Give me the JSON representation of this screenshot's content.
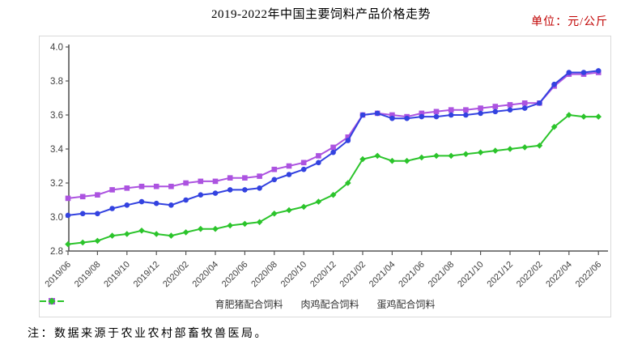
{
  "title": "2019-2022年中国主要饲料产品价格走势",
  "unit_label": "单位：元/公斤",
  "note": "注：数据来源于农业农村部畜牧兽医局。",
  "colors": {
    "pig_feed": "#3342E0",
    "broiler_feed": "#AC53E0",
    "layer_feed": "#2BC42B",
    "unit_text": "#C00000",
    "axis": "#555555",
    "tick_text": "#404040",
    "box_border": "#D9D9D9"
  },
  "chart_data": {
    "type": "line",
    "title": "2019-2022年中国主要饲料产品价格走势",
    "xlabel": "",
    "ylabel": "元/公斤",
    "grid": false,
    "legend_position": "bottom",
    "ylim": [
      2.8,
      4.0
    ],
    "y_ticks": [
      "2.8",
      "3.0",
      "3.2",
      "3.4",
      "3.6",
      "3.8",
      "4.0"
    ],
    "x": [
      "2019/06",
      "2019/07",
      "2019/08",
      "2019/09",
      "2019/10",
      "2019/11",
      "2019/12",
      "2020/01",
      "2020/02",
      "2020/03",
      "2020/04",
      "2020/05",
      "2020/06",
      "2020/07",
      "2020/08",
      "2020/09",
      "2020/10",
      "2020/11",
      "2020/12",
      "2021/01",
      "2021/02",
      "2021/03",
      "2021/04",
      "2021/05",
      "2021/06",
      "2021/07",
      "2021/08",
      "2021/09",
      "2021/10",
      "2021/11",
      "2021/12",
      "2022/01",
      "2022/02",
      "2022/03",
      "2022/04",
      "2022/05",
      "2022/06"
    ],
    "x_tick_every": 2,
    "series": [
      {
        "name": "育肥猪配合饲料",
        "marker": "circle",
        "color": "#3342E0",
        "values": [
          3.01,
          3.02,
          3.02,
          3.05,
          3.07,
          3.09,
          3.08,
          3.07,
          3.1,
          3.13,
          3.14,
          3.16,
          3.16,
          3.17,
          3.22,
          3.25,
          3.28,
          3.32,
          3.38,
          3.45,
          3.6,
          3.61,
          3.58,
          3.58,
          3.59,
          3.59,
          3.6,
          3.6,
          3.61,
          3.62,
          3.63,
          3.64,
          3.67,
          3.78,
          3.85,
          3.85,
          3.86
        ]
      },
      {
        "name": "肉鸡配合饲料",
        "marker": "square",
        "color": "#AC53E0",
        "values": [
          3.11,
          3.12,
          3.13,
          3.16,
          3.17,
          3.18,
          3.18,
          3.18,
          3.2,
          3.21,
          3.21,
          3.23,
          3.23,
          3.24,
          3.28,
          3.3,
          3.32,
          3.36,
          3.41,
          3.47,
          3.6,
          3.61,
          3.6,
          3.59,
          3.61,
          3.62,
          3.63,
          3.63,
          3.64,
          3.65,
          3.66,
          3.67,
          3.67,
          3.77,
          3.84,
          3.84,
          3.85
        ]
      },
      {
        "name": "蛋鸡配合饲料",
        "marker": "diamond",
        "color": "#2BC42B",
        "values": [
          2.84,
          2.85,
          2.86,
          2.89,
          2.9,
          2.92,
          2.9,
          2.89,
          2.91,
          2.93,
          2.93,
          2.95,
          2.96,
          2.97,
          3.02,
          3.04,
          3.06,
          3.09,
          3.13,
          3.2,
          3.34,
          3.36,
          3.33,
          3.33,
          3.35,
          3.36,
          3.36,
          3.37,
          3.38,
          3.39,
          3.4,
          3.41,
          3.42,
          3.53,
          3.6,
          3.59,
          3.59
        ]
      }
    ]
  }
}
